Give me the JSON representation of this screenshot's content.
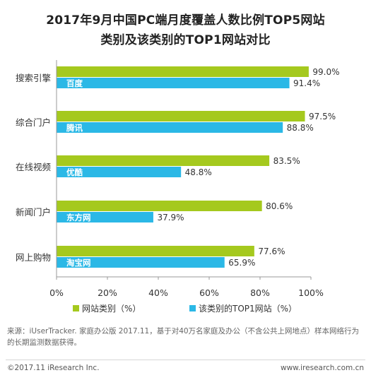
{
  "title_line1": "2017年9月中国PC端月度覆盖人数比例TOP5网站",
  "title_line2": "类别及该类别的TOP1网站对比",
  "colors": {
    "category": "#a5c91e",
    "top1": "#2bb8e6",
    "axis": "#999999",
    "text": "#333333",
    "bar_label": "#ffffff"
  },
  "chart_data": {
    "type": "bar",
    "orientation": "horizontal",
    "categories": [
      "搜索引擎",
      "综合门户",
      "在线视频",
      "新闻门户",
      "网上购物"
    ],
    "series": [
      {
        "name": "网站类别（%）",
        "values": [
          99.0,
          97.5,
          83.5,
          80.6,
          77.6
        ],
        "value_labels": [
          "99.0%",
          "97.5%",
          "83.5%",
          "80.6%",
          "77.6%"
        ]
      },
      {
        "name": "该类别的TOP1网站（%）",
        "values": [
          91.4,
          88.8,
          48.8,
          37.9,
          65.9
        ],
        "value_labels": [
          "91.4%",
          "88.8%",
          "48.8%",
          "37.9%",
          "65.9%"
        ],
        "bar_labels": [
          "百度",
          "腾讯",
          "优酷",
          "东方网",
          "淘宝网"
        ]
      }
    ],
    "xlim": [
      0,
      100
    ],
    "xticks": [
      "0%",
      "20%",
      "40%",
      "60%",
      "80%",
      "100%"
    ],
    "grid": false,
    "legend_position": "bottom"
  },
  "source": "来源：iUserTracker. 家庭办公版 2017.11，基于对40万名家庭及办公（不含公共上网地点）样本网络行为的长期监测数据获得。",
  "footer": {
    "copyright": "©2017.11 iResearch Inc.",
    "website": "www.iresearch.com.cn"
  }
}
